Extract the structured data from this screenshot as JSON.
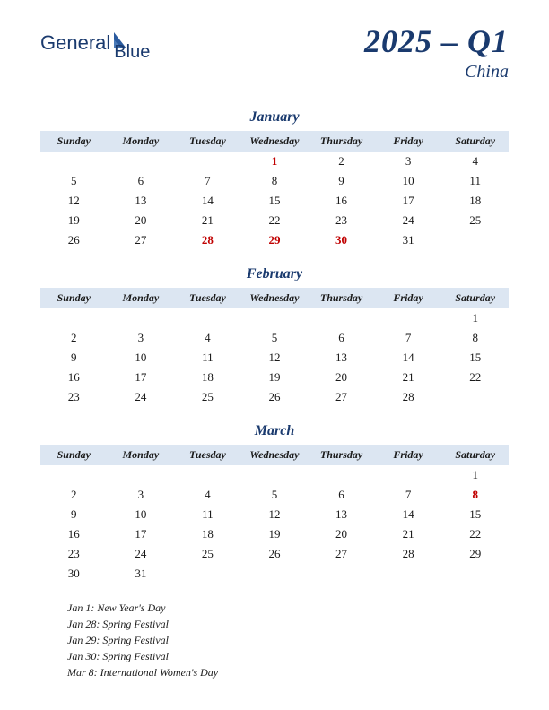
{
  "logo": {
    "text": "General",
    "sub": "Blue"
  },
  "title": "2025 – Q1",
  "country": "China",
  "dayHeaders": [
    "Sunday",
    "Monday",
    "Tuesday",
    "Wednesday",
    "Thursday",
    "Friday",
    "Saturday"
  ],
  "colors": {
    "accent": "#1a3a6e",
    "headerBg": "#dce6f2",
    "holiday": "#c00000",
    "text": "#1a1a1a"
  },
  "months": [
    {
      "name": "January",
      "weeks": [
        [
          null,
          null,
          null,
          {
            "d": 1,
            "h": true
          },
          {
            "d": 2
          },
          {
            "d": 3
          },
          {
            "d": 4
          }
        ],
        [
          {
            "d": 5
          },
          {
            "d": 6
          },
          {
            "d": 7
          },
          {
            "d": 8
          },
          {
            "d": 9
          },
          {
            "d": 10
          },
          {
            "d": 11
          }
        ],
        [
          {
            "d": 12
          },
          {
            "d": 13
          },
          {
            "d": 14
          },
          {
            "d": 15
          },
          {
            "d": 16
          },
          {
            "d": 17
          },
          {
            "d": 18
          }
        ],
        [
          {
            "d": 19
          },
          {
            "d": 20
          },
          {
            "d": 21
          },
          {
            "d": 22
          },
          {
            "d": 23
          },
          {
            "d": 24
          },
          {
            "d": 25
          }
        ],
        [
          {
            "d": 26
          },
          {
            "d": 27
          },
          {
            "d": 28,
            "h": true
          },
          {
            "d": 29,
            "h": true
          },
          {
            "d": 30,
            "h": true
          },
          {
            "d": 31
          },
          null
        ]
      ]
    },
    {
      "name": "February",
      "weeks": [
        [
          null,
          null,
          null,
          null,
          null,
          null,
          {
            "d": 1
          }
        ],
        [
          {
            "d": 2
          },
          {
            "d": 3
          },
          {
            "d": 4
          },
          {
            "d": 5
          },
          {
            "d": 6
          },
          {
            "d": 7
          },
          {
            "d": 8
          }
        ],
        [
          {
            "d": 9
          },
          {
            "d": 10
          },
          {
            "d": 11
          },
          {
            "d": 12
          },
          {
            "d": 13
          },
          {
            "d": 14
          },
          {
            "d": 15
          }
        ],
        [
          {
            "d": 16
          },
          {
            "d": 17
          },
          {
            "d": 18
          },
          {
            "d": 19
          },
          {
            "d": 20
          },
          {
            "d": 21
          },
          {
            "d": 22
          }
        ],
        [
          {
            "d": 23
          },
          {
            "d": 24
          },
          {
            "d": 25
          },
          {
            "d": 26
          },
          {
            "d": 27
          },
          {
            "d": 28
          },
          null
        ]
      ]
    },
    {
      "name": "March",
      "weeks": [
        [
          null,
          null,
          null,
          null,
          null,
          null,
          {
            "d": 1
          }
        ],
        [
          {
            "d": 2
          },
          {
            "d": 3
          },
          {
            "d": 4
          },
          {
            "d": 5
          },
          {
            "d": 6
          },
          {
            "d": 7
          },
          {
            "d": 8,
            "h": true
          }
        ],
        [
          {
            "d": 9
          },
          {
            "d": 10
          },
          {
            "d": 11
          },
          {
            "d": 12
          },
          {
            "d": 13
          },
          {
            "d": 14
          },
          {
            "d": 15
          }
        ],
        [
          {
            "d": 16
          },
          {
            "d": 17
          },
          {
            "d": 18
          },
          {
            "d": 19
          },
          {
            "d": 20
          },
          {
            "d": 21
          },
          {
            "d": 22
          }
        ],
        [
          {
            "d": 23
          },
          {
            "d": 24
          },
          {
            "d": 25
          },
          {
            "d": 26
          },
          {
            "d": 27
          },
          {
            "d": 28
          },
          {
            "d": 29
          }
        ],
        [
          {
            "d": 30
          },
          {
            "d": 31
          },
          null,
          null,
          null,
          null,
          null
        ]
      ]
    }
  ],
  "holidays": [
    "Jan 1: New Year's Day",
    "Jan 28: Spring Festival",
    "Jan 29: Spring Festival",
    "Jan 30: Spring Festival",
    "Mar 8: International Women's Day"
  ]
}
